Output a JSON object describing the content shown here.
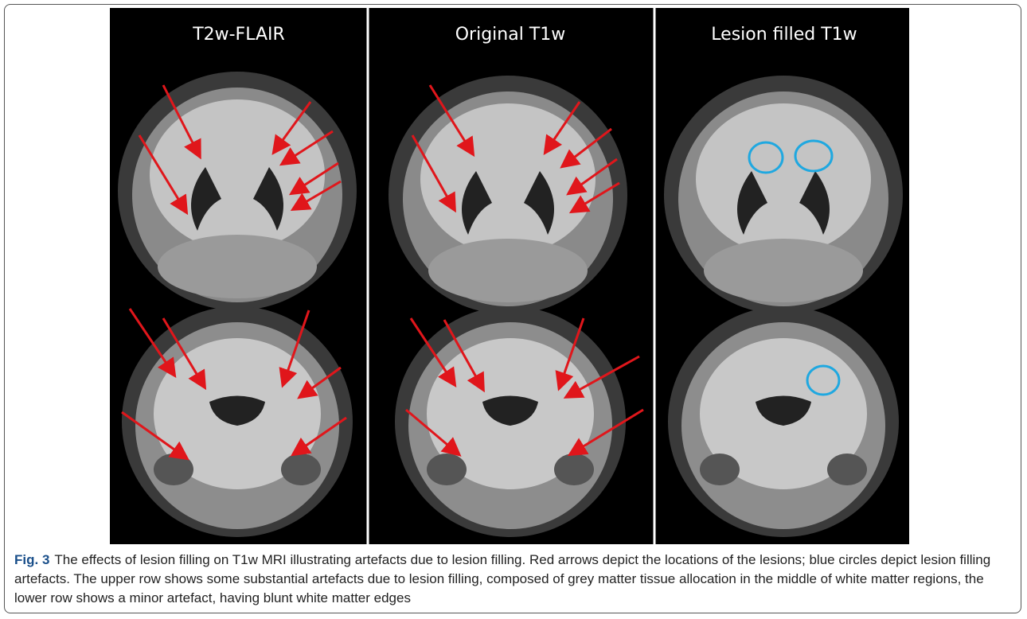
{
  "figure": {
    "panels": [
      {
        "title": "T2w-FLAIR"
      },
      {
        "title": "Original T1w"
      },
      {
        "title": "Lesion filled T1w"
      }
    ],
    "caption": {
      "label": "Fig. 3",
      "text": "The effects of lesion filling on T1w MRI illustrating artefacts due to lesion filling. Red arrows depict the locations of the lesions; blue circles depict lesion filling artefacts. The upper row shows some substantial artefacts due to lesion filling, composed of grey matter tissue allocation in the middle of white matter regions, the lower row shows a minor artefact, having blunt white matter edges"
    }
  }
}
